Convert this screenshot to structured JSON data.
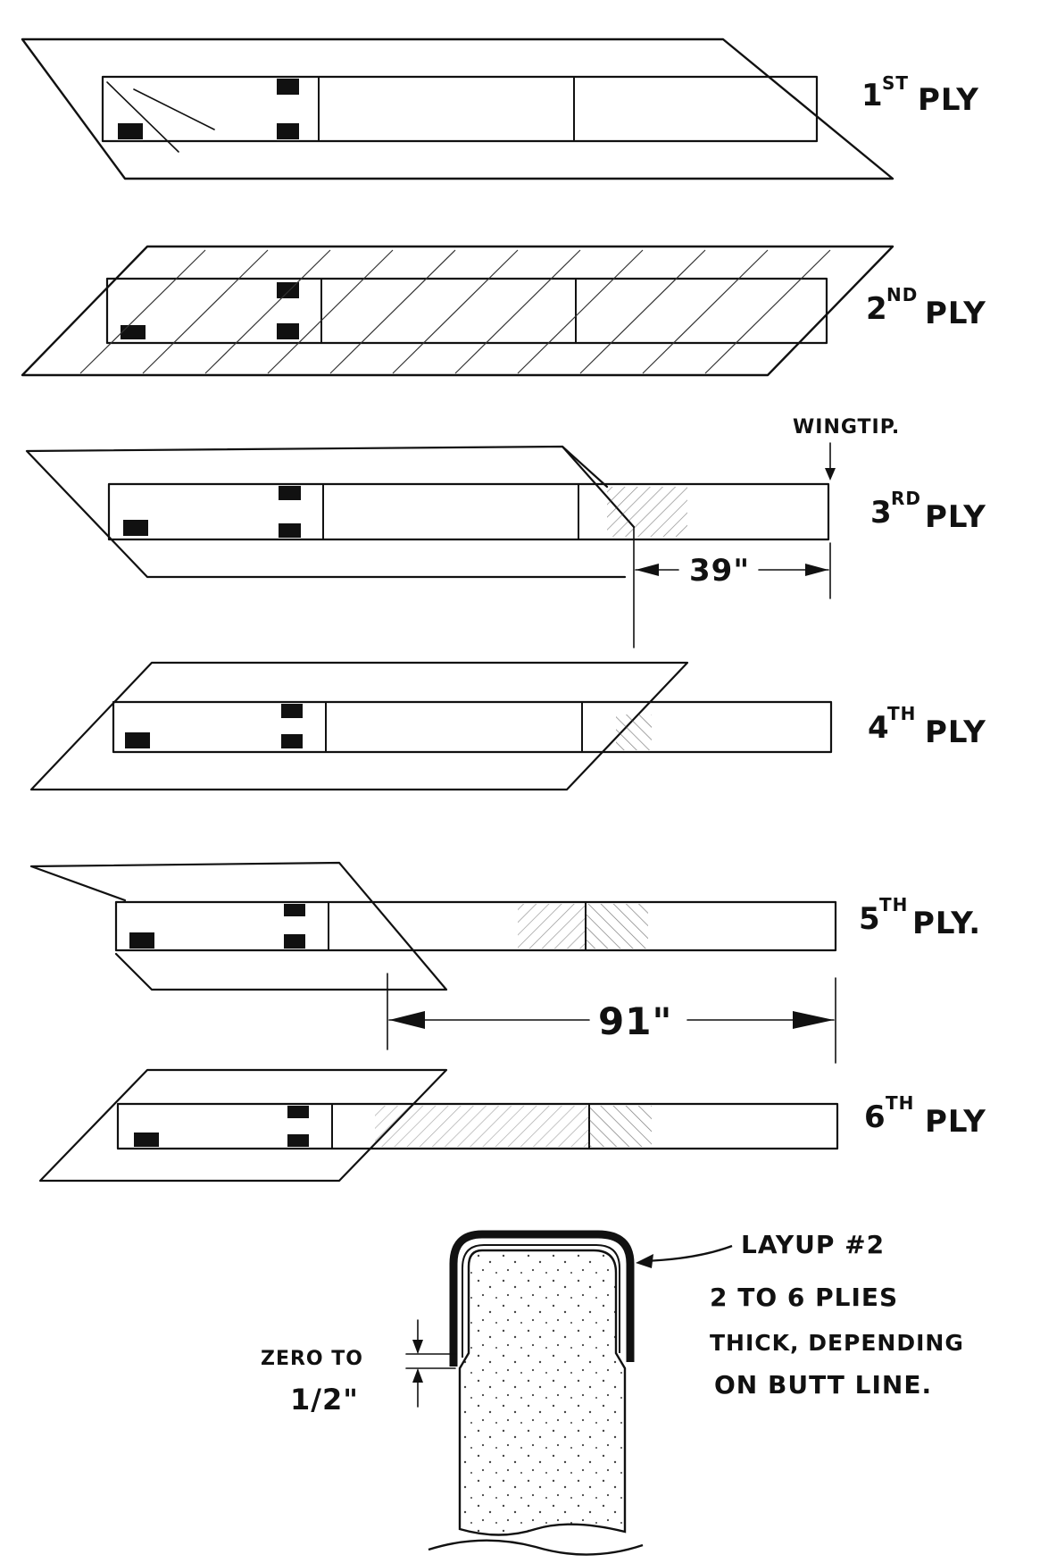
{
  "plies": [
    {
      "num": "1",
      "suffix": "ST",
      "word": "PLY"
    },
    {
      "num": "2",
      "suffix": "ND",
      "word": "PLY"
    },
    {
      "num": "3",
      "suffix": "RD",
      "word": "PLY"
    },
    {
      "num": "4",
      "suffix": "TH",
      "word": "PLY"
    },
    {
      "num": "5",
      "suffix": "TH",
      "word": "PLY."
    },
    {
      "num": "6",
      "suffix": "TH",
      "word": "PLY"
    }
  ],
  "annotations": {
    "wingtip": "WINGTIP.",
    "dim_39": "39\"",
    "dim_91": "91\""
  },
  "section": {
    "layup_label": "LAYUP #2",
    "desc_lines": [
      "2 TO 6 PLIES",
      "THICK, DEPENDING",
      "ON BUTT LINE."
    ],
    "zero_to": "ZERO TO",
    "half_inch": "1/2\""
  }
}
